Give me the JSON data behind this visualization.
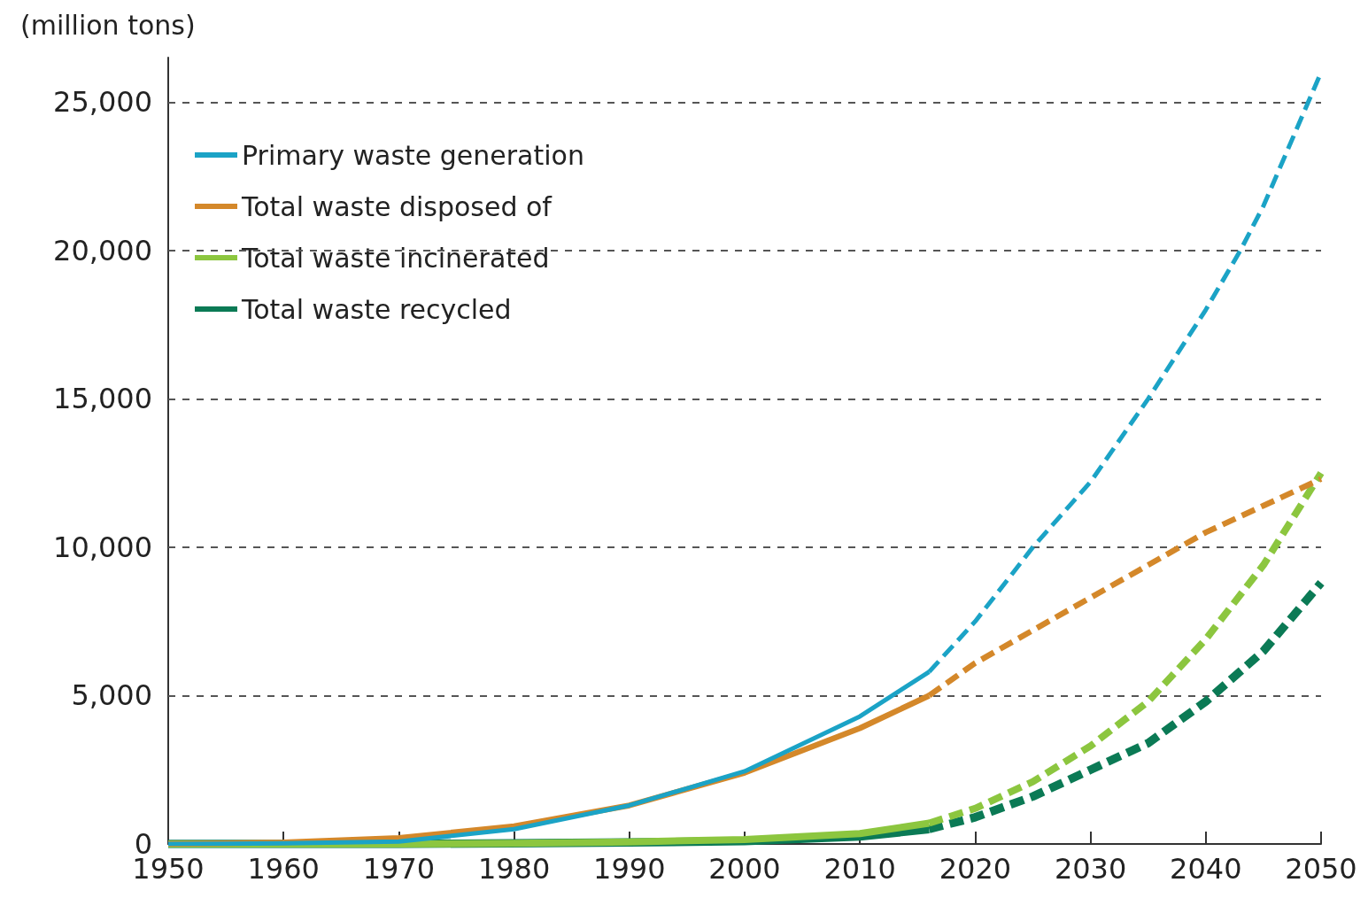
{
  "chart_data": {
    "type": "line",
    "ylabel": "(million tons)",
    "xlim": [
      1950,
      2050
    ],
    "xticks": [
      1950,
      1960,
      1970,
      1980,
      1990,
      2000,
      2010,
      2020,
      2030,
      2040,
      2050
    ],
    "ylim": [
      0,
      26500
    ],
    "yticks": [
      {
        "value": 0,
        "label": "0"
      },
      {
        "value": 5000,
        "label": "5,000"
      },
      {
        "value": 10000,
        "label": "10,000"
      },
      {
        "value": 15000,
        "label": "15,000"
      },
      {
        "value": 20000,
        "label": "20,000"
      },
      {
        "value": 25000,
        "label": "25,000"
      }
    ],
    "grid": "y",
    "legend": "top left",
    "marker": "none",
    "series": [
      {
        "name": "Primary waste generation",
        "color": "#1ba3c6",
        "line_style": "solid",
        "x": [
          1950,
          1960,
          1970,
          1980,
          1990,
          2000,
          2010,
          2016
        ],
        "values": [
          0,
          20,
          80,
          500,
          1300,
          2450,
          4300,
          5800
        ]
      },
      {
        "name": "Total waste disposed of",
        "color": "#d4882a",
        "line_style": "solid",
        "x": [
          1950,
          1960,
          1970,
          1980,
          1990,
          2000,
          2010,
          2016
        ],
        "values": [
          0,
          50,
          200,
          600,
          1300,
          2400,
          3900,
          5000
        ]
      },
      {
        "name": "Total waste incinerated",
        "color": "#8cc63f",
        "line_style": "solid",
        "x": [
          1950,
          1970,
          1980,
          1990,
          2000,
          2010,
          2016
        ],
        "values": [
          0,
          0,
          20,
          70,
          150,
          350,
          700
        ]
      },
      {
        "name": "Total waste recycled",
        "color": "#0b7a55",
        "line_style": "solid",
        "x": [
          1950,
          1970,
          1990,
          2000,
          2010,
          2016
        ],
        "values": [
          0,
          0,
          50,
          100,
          250,
          500
        ]
      },
      {
        "color": "#1ba3c6",
        "line_style": "dashed",
        "x": [
          2016,
          2020,
          2025,
          2030,
          2035,
          2040,
          2043,
          2045,
          2050
        ],
        "values": [
          5800,
          7500,
          10000,
          12200,
          15000,
          18000,
          20000,
          21500,
          26000
        ]
      },
      {
        "color": "#d4882a",
        "line_style": "dashed",
        "x": [
          2016,
          2020,
          2025,
          2030,
          2035,
          2040,
          2045,
          2050
        ],
        "values": [
          5000,
          6100,
          7200,
          8300,
          9400,
          10500,
          11400,
          12300
        ]
      },
      {
        "color": "#8cc63f",
        "line_style": "dashed",
        "x": [
          2016,
          2020,
          2025,
          2030,
          2035,
          2040,
          2045,
          2050
        ],
        "values": [
          700,
          1200,
          2100,
          3300,
          4800,
          6900,
          9400,
          12500
        ]
      },
      {
        "color": "#0b7a55",
        "line_style": "dashed",
        "x": [
          2016,
          2020,
          2025,
          2030,
          2035,
          2040,
          2045,
          2050
        ],
        "values": [
          500,
          900,
          1600,
          2500,
          3400,
          4800,
          6500,
          8800
        ]
      }
    ]
  }
}
